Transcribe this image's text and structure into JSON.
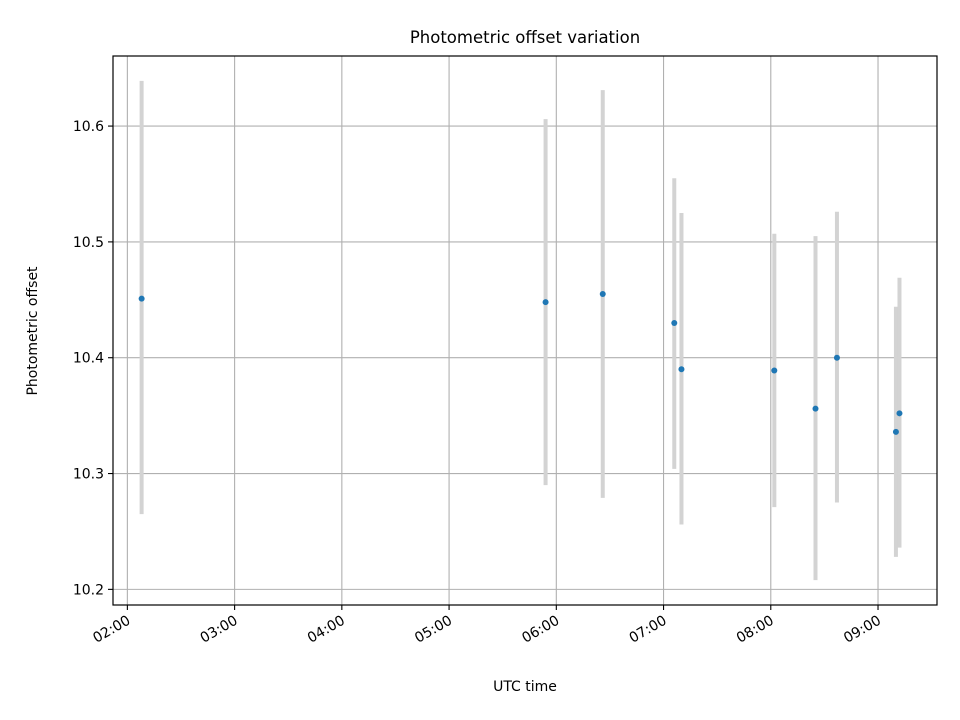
{
  "chart_data": {
    "type": "scatter",
    "title": "Photometric offset variation",
    "xlabel": "UTC time",
    "ylabel": "Photometric offset",
    "x_unit": "hours UTC",
    "xlim": [
      1.866,
      9.55
    ],
    "ylim": [
      10.1865,
      10.6605
    ],
    "x_ticks": [
      {
        "value": 2,
        "label": "02:00"
      },
      {
        "value": 3,
        "label": "03:00"
      },
      {
        "value": 4,
        "label": "04:00"
      },
      {
        "value": 5,
        "label": "05:00"
      },
      {
        "value": 6,
        "label": "06:00"
      },
      {
        "value": 7,
        "label": "07:00"
      },
      {
        "value": 8,
        "label": "08:00"
      },
      {
        "value": 9,
        "label": "09:00"
      }
    ],
    "y_ticks": [
      {
        "value": 10.2,
        "label": "10.2"
      },
      {
        "value": 10.3,
        "label": "10.3"
      },
      {
        "value": 10.4,
        "label": "10.4"
      },
      {
        "value": 10.5,
        "label": "10.5"
      },
      {
        "value": 10.6,
        "label": "10.6"
      }
    ],
    "grid": true,
    "point_color": "#1f77b4",
    "errorbar_color": "#d3d3d3",
    "series": [
      {
        "points": [
          {
            "time": "02:08",
            "x": 2.133,
            "y": 10.451,
            "ymin": 10.265,
            "ymax": 10.639
          },
          {
            "time": "05:54",
            "x": 5.9,
            "y": 10.448,
            "ymin": 10.29,
            "ymax": 10.606
          },
          {
            "time": "06:26",
            "x": 6.433,
            "y": 10.455,
            "ymin": 10.279,
            "ymax": 10.631
          },
          {
            "time": "07:06",
            "x": 7.1,
            "y": 10.43,
            "ymin": 10.304,
            "ymax": 10.555
          },
          {
            "time": "07:10",
            "x": 7.167,
            "y": 10.39,
            "ymin": 10.256,
            "ymax": 10.525
          },
          {
            "time": "08:02",
            "x": 8.033,
            "y": 10.389,
            "ymin": 10.271,
            "ymax": 10.507
          },
          {
            "time": "08:25",
            "x": 8.417,
            "y": 10.356,
            "ymin": 10.208,
            "ymax": 10.505
          },
          {
            "time": "08:37",
            "x": 8.617,
            "y": 10.4,
            "ymin": 10.275,
            "ymax": 10.526
          },
          {
            "time": "09:10",
            "x": 9.167,
            "y": 10.336,
            "ymin": 10.228,
            "ymax": 10.444
          },
          {
            "time": "09:12",
            "x": 9.2,
            "y": 10.352,
            "ymin": 10.236,
            "ymax": 10.469
          }
        ]
      }
    ]
  }
}
